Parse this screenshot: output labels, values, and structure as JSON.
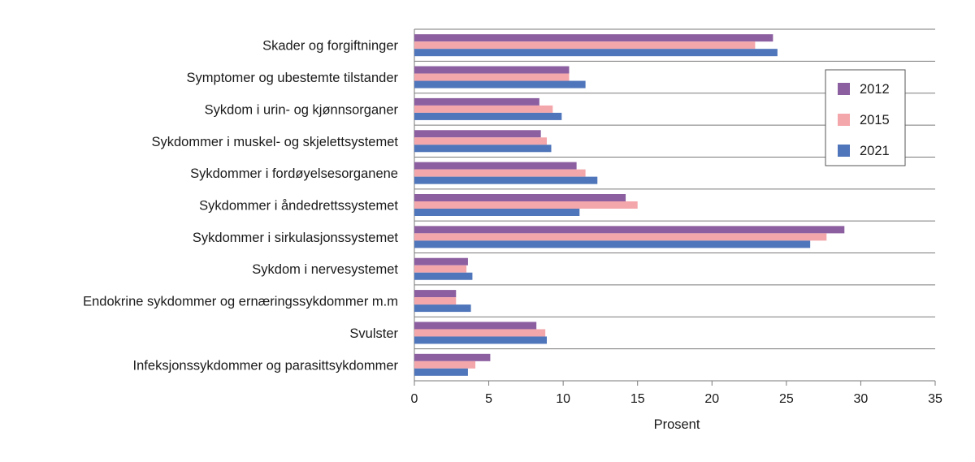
{
  "chart_data": {
    "type": "bar",
    "orientation": "horizontal",
    "categories": [
      "Skader og forgiftninger",
      "Symptomer og ubestemte tilstander",
      "Sykdom i urin- og kjønnsorganer",
      "Sykdommer i muskel- og skjelettsystemet",
      "Sykdommer i fordøyelsesorganene",
      "Sykdommer i åndedrettssystemet",
      "Sykdommer i sirkulasjonssystemet",
      "Sykdom i nervesystemet",
      "Endokrine sykdommer og ernæringssykdommer m.m",
      "Svulster",
      "Infeksjonssykdommer og parasittsykdommer"
    ],
    "series": [
      {
        "name": "2012",
        "color": "#8c5fa0",
        "values": [
          24.1,
          10.4,
          8.4,
          8.5,
          10.9,
          14.2,
          28.9,
          3.6,
          2.8,
          8.2,
          5.1
        ]
      },
      {
        "name": "2015",
        "color": "#f4a7ab",
        "values": [
          22.9,
          10.4,
          9.3,
          8.9,
          11.5,
          15.0,
          27.7,
          3.5,
          2.8,
          8.8,
          4.1
        ]
      },
      {
        "name": "2021",
        "color": "#4f75ba",
        "values": [
          24.4,
          11.5,
          9.9,
          9.2,
          12.3,
          11.1,
          26.6,
          3.9,
          3.8,
          8.9,
          3.6
        ]
      }
    ],
    "xlim": [
      0,
      35
    ],
    "xticks": [
      "0",
      "5",
      "10",
      "15",
      "20",
      "25",
      "30",
      "35"
    ],
    "xlabel": "Prosent",
    "ylabel": "",
    "title": "",
    "grid": "horizontal separators between categories",
    "legend": "top-right inside plot"
  }
}
